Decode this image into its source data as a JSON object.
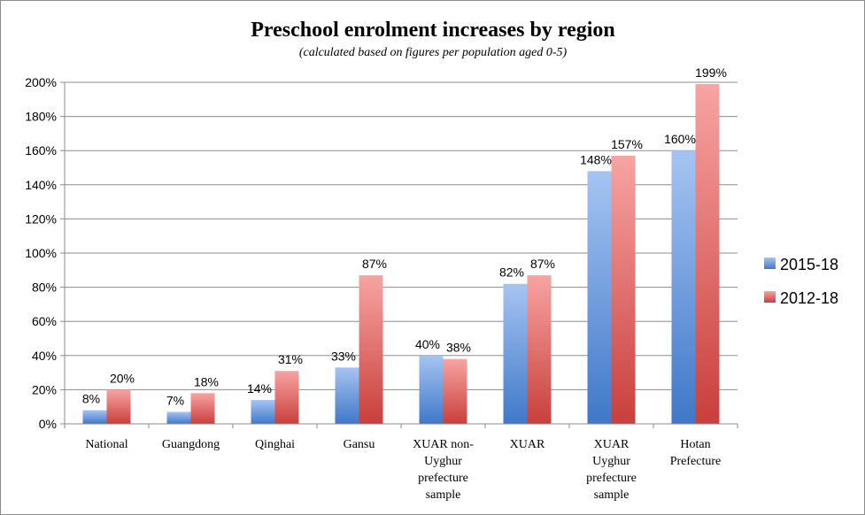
{
  "chart_data": {
    "type": "bar",
    "title": "Preschool enrolment increases by region",
    "subtitle": "(calculated based on figures per population aged 0-5)",
    "categories": [
      "National",
      "Guangdong",
      "Qinghai",
      "Gansu",
      "XUAR non-Uyghur prefecture sample",
      "XUAR",
      "XUAR Uyghur prefecture sample",
      "Hotan Prefecture"
    ],
    "category_lines": [
      [
        "National"
      ],
      [
        "Guangdong"
      ],
      [
        "Qinghai"
      ],
      [
        "Gansu"
      ],
      [
        "XUAR non-",
        "Uyghur",
        "prefecture",
        "sample"
      ],
      [
        "XUAR"
      ],
      [
        "XUAR",
        "Uyghur",
        "prefecture",
        "sample"
      ],
      [
        "Hotan",
        "Prefecture"
      ]
    ],
    "series": [
      {
        "name": "2015-18",
        "values": [
          8,
          7,
          14,
          33,
          40,
          82,
          148,
          160
        ],
        "labels": [
          "8%",
          "7%",
          "14%",
          "33%",
          "40%",
          "82%",
          "148%",
          "160%"
        ],
        "color": "#4f81bd"
      },
      {
        "name": "2012-18",
        "values": [
          20,
          18,
          31,
          87,
          38,
          87,
          157,
          199
        ],
        "labels": [
          "20%",
          "18%",
          "31%",
          "87%",
          "38%",
          "87%",
          "157%",
          "199%"
        ],
        "color": "#c0504d"
      }
    ],
    "ylim": [
      0,
      200
    ],
    "y_ticks": [
      "0%",
      "20%",
      "40%",
      "60%",
      "80%",
      "100%",
      "120%",
      "140%",
      "160%",
      "180%",
      "200%"
    ],
    "xlabel": "",
    "ylabel": "",
    "grid": true,
    "legend_position": "right"
  }
}
